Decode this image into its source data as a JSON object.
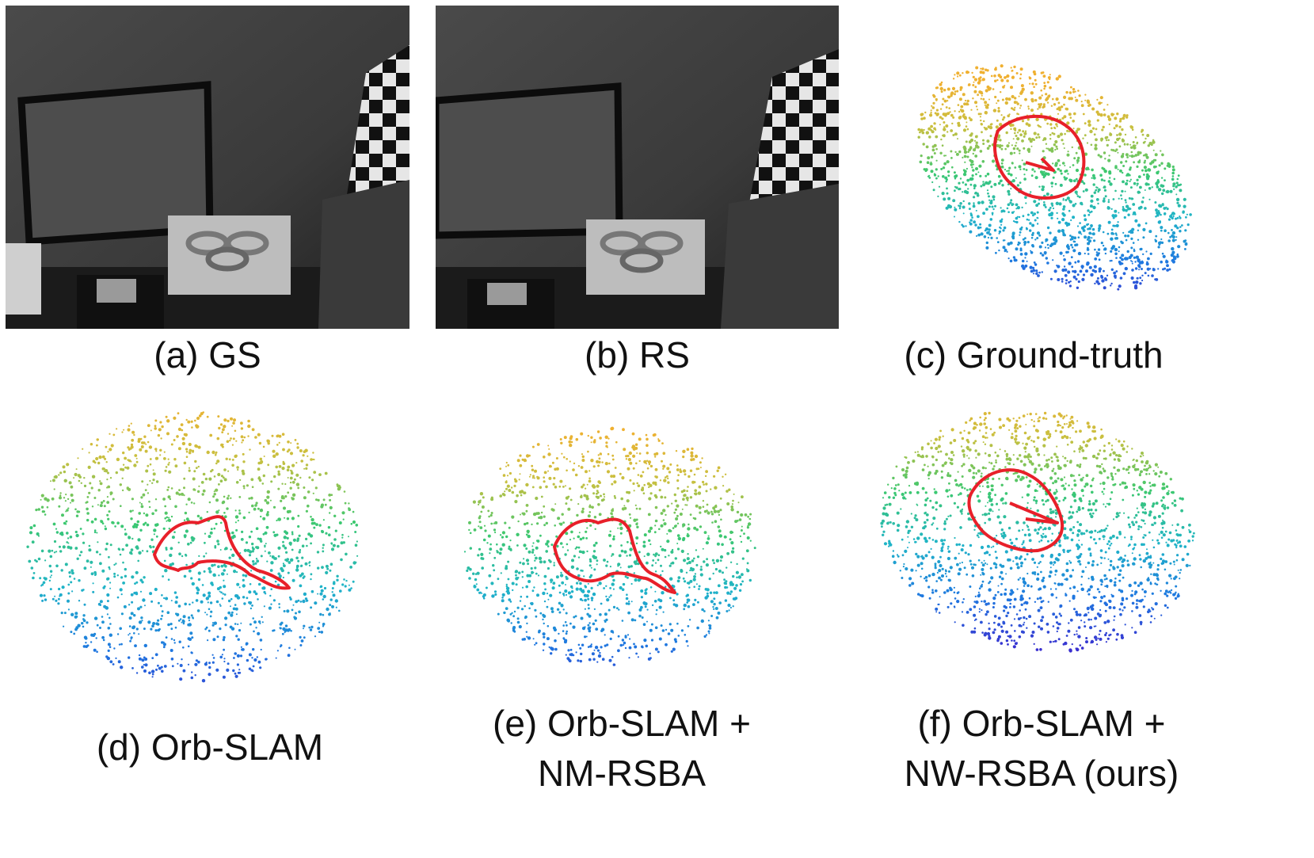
{
  "figure": {
    "panels": [
      {
        "id": "a",
        "caption": "(a) GS",
        "kind": "grayscale-photo",
        "content": "office-scene-with-whiteboard-checkerboard-drone"
      },
      {
        "id": "b",
        "caption": "(b) RS",
        "kind": "grayscale-photo",
        "content": "office-scene-with-whiteboard-checkerboard-drone"
      },
      {
        "id": "c",
        "caption": "(c) Ground-truth",
        "kind": "point-cloud-with-trajectory"
      },
      {
        "id": "d",
        "caption": "(d) Orb-SLAM",
        "kind": "point-cloud-with-trajectory"
      },
      {
        "id": "e",
        "caption_lines": [
          "(e) Orb-SLAM +",
          "NM-RSBA"
        ],
        "kind": "point-cloud-with-trajectory"
      },
      {
        "id": "f",
        "caption_lines": [
          "(f) Orb-SLAM +",
          "NW-RSBA (ours)"
        ],
        "kind": "point-cloud-with-trajectory"
      }
    ],
    "colors": {
      "trajectory": "#e8202a",
      "cloud_colormap": [
        "#3a2fd0",
        "#1f78e0",
        "#20b4c8",
        "#3cc870",
        "#c8c040",
        "#f0b030"
      ]
    }
  }
}
